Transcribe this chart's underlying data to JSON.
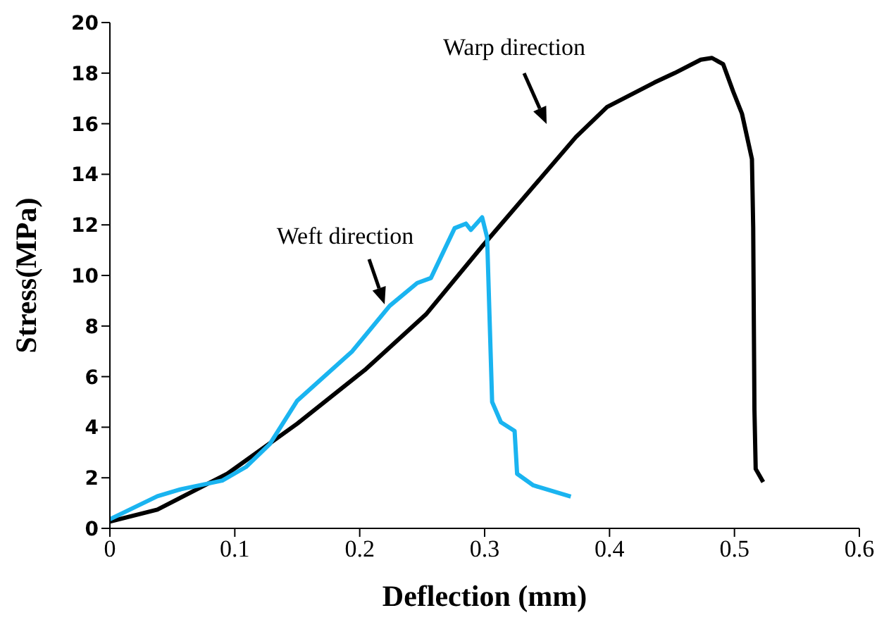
{
  "chart_data": {
    "type": "line",
    "xlabel": "Deflection (mm)",
    "ylabel": "Stress(MPa)",
    "xlim": [
      0,
      0.6
    ],
    "xticks": [
      0,
      0.1,
      0.2,
      0.3,
      0.4,
      0.5,
      0.6
    ],
    "ylim": [
      0,
      20
    ],
    "yticks": [
      0,
      2,
      4,
      6,
      8,
      10,
      12,
      14,
      16,
      18,
      20
    ],
    "marker": "none",
    "annotations": [
      "Warp direction",
      "Weft direction"
    ],
    "series": [
      {
        "color": "#000000",
        "x": [
          0,
          0.038,
          0.094,
          0.15,
          0.205,
          0.253,
          0.298,
          0.373,
          0.398,
          0.436,
          0.452,
          0.473,
          0.482,
          0.491,
          0.499,
          0.506,
          0.514,
          0.515,
          0.516,
          0.517,
          0.523
        ],
        "values": [
          0.27,
          0.74,
          2.16,
          4.14,
          6.3,
          8.46,
          11.15,
          15.47,
          16.66,
          17.63,
          18.0,
          18.53,
          18.6,
          18.35,
          17.27,
          16.4,
          14.6,
          11.9,
          4.7,
          2.35,
          1.83
        ]
      },
      {
        "color": "#1ab4f0",
        "x": [
          0,
          0.038,
          0.057,
          0.09,
          0.109,
          0.128,
          0.15,
          0.194,
          0.224,
          0.246,
          0.257,
          0.276,
          0.285,
          0.289,
          0.298,
          0.302,
          0.306,
          0.313,
          0.324,
          0.326,
          0.339,
          0.369
        ],
        "values": [
          0.36,
          1.27,
          1.55,
          1.89,
          2.43,
          3.33,
          5.05,
          7.0,
          8.8,
          9.7,
          9.9,
          11.87,
          12.05,
          11.8,
          12.3,
          11.5,
          5.0,
          4.2,
          3.85,
          2.16,
          1.7,
          1.26
        ]
      }
    ]
  }
}
